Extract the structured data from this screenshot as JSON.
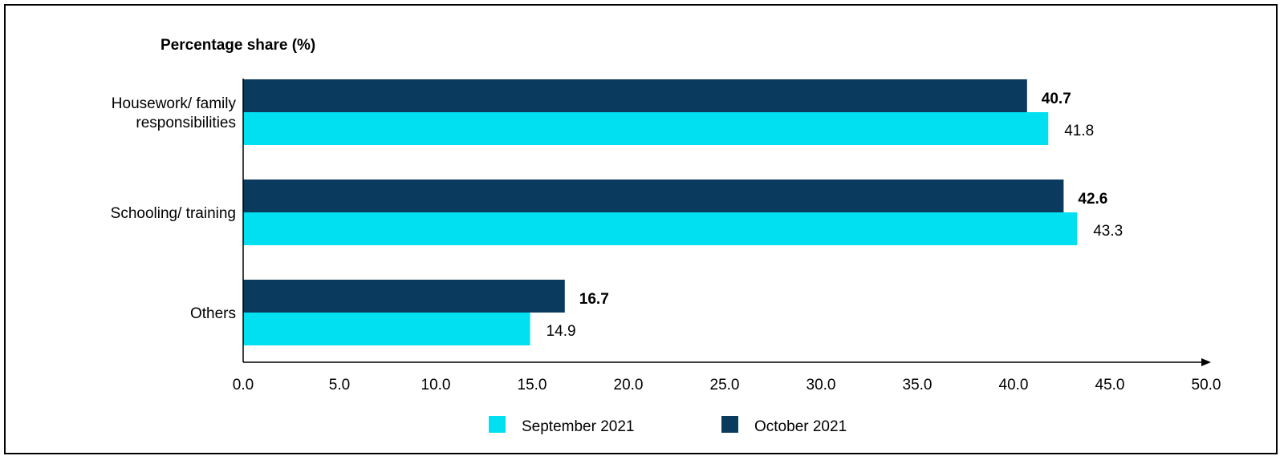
{
  "chart_data": {
    "type": "bar",
    "orientation": "horizontal",
    "ylabel": "Percentage share (%)",
    "categories": [
      "Housework/ family responsibilities",
      "Schooling/ training",
      "Others"
    ],
    "category_lines": [
      [
        "Housework/ family",
        "responsibilities"
      ],
      [
        "Schooling/ training"
      ],
      [
        "Others"
      ]
    ],
    "series": [
      {
        "name": "October 2021",
        "color": "#0b3a5f",
        "values": [
          40.7,
          42.6,
          16.7
        ],
        "labels": [
          "40.7",
          "42.6",
          "16.7"
        ],
        "label_bold": true
      },
      {
        "name": "September 2021",
        "color": "#00e0f0",
        "values": [
          41.8,
          43.3,
          14.9
        ],
        "labels": [
          "41.8",
          "43.3",
          "14.9"
        ],
        "label_bold": false
      }
    ],
    "xlim": [
      0,
      50
    ],
    "xticks": [
      "0.0",
      "5.0",
      "10.0",
      "15.0",
      "20.0",
      "25.0",
      "30.0",
      "35.0",
      "40.0",
      "45.0",
      "50.0"
    ],
    "grid": false,
    "legend": {
      "position": "bottom",
      "order": [
        "September 2021",
        "October 2021"
      ]
    }
  }
}
